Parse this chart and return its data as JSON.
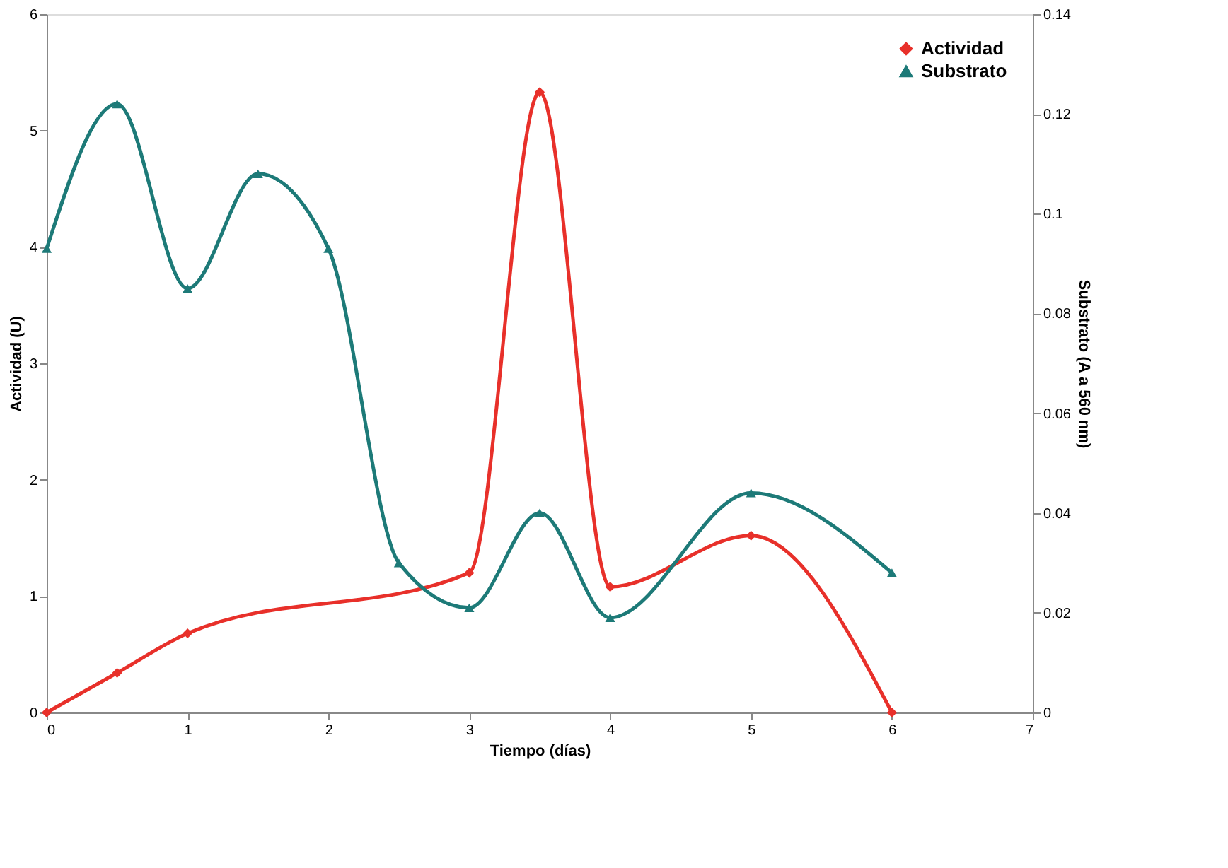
{
  "chart_data": {
    "type": "line",
    "xlabel": "Tiempo (días)",
    "ylabel": "Actividad (U)",
    "y2label": "Substrato (A a 560 nm)",
    "xlim": [
      0,
      7
    ],
    "xticks": [
      0,
      1,
      2,
      3,
      4,
      5,
      6,
      7
    ],
    "ylim": [
      0,
      6
    ],
    "yticks": [
      0,
      1,
      2,
      3,
      4,
      5,
      6
    ],
    "y2lim": [
      0,
      0.14
    ],
    "y2ticks": [
      0,
      0.02,
      0.04,
      0.06,
      0.08,
      0.1,
      0.12,
      0.14
    ],
    "grid": false,
    "legend": "top right",
    "line_style": "solid",
    "series": [
      {
        "name": "Actividad",
        "color": "#e8302a",
        "marker": "diamond",
        "axis": "y",
        "x": [
          0,
          0.5,
          1,
          3,
          3.5,
          4,
          5,
          6
        ],
        "values": [
          0,
          0.34,
          0.68,
          1.2,
          5.33,
          1.08,
          1.52,
          0
        ]
      },
      {
        "name": "Substrato",
        "color": "#1d7a78",
        "marker": "triangle",
        "axis": "y2",
        "x": [
          0,
          0.5,
          1,
          1.5,
          2,
          2.5,
          3,
          3.5,
          4,
          5,
          6
        ],
        "values": [
          0.093,
          0.122,
          0.085,
          0.108,
          0.093,
          0.03,
          0.021,
          0.04,
          0.019,
          0.044,
          0.028
        ]
      }
    ]
  }
}
